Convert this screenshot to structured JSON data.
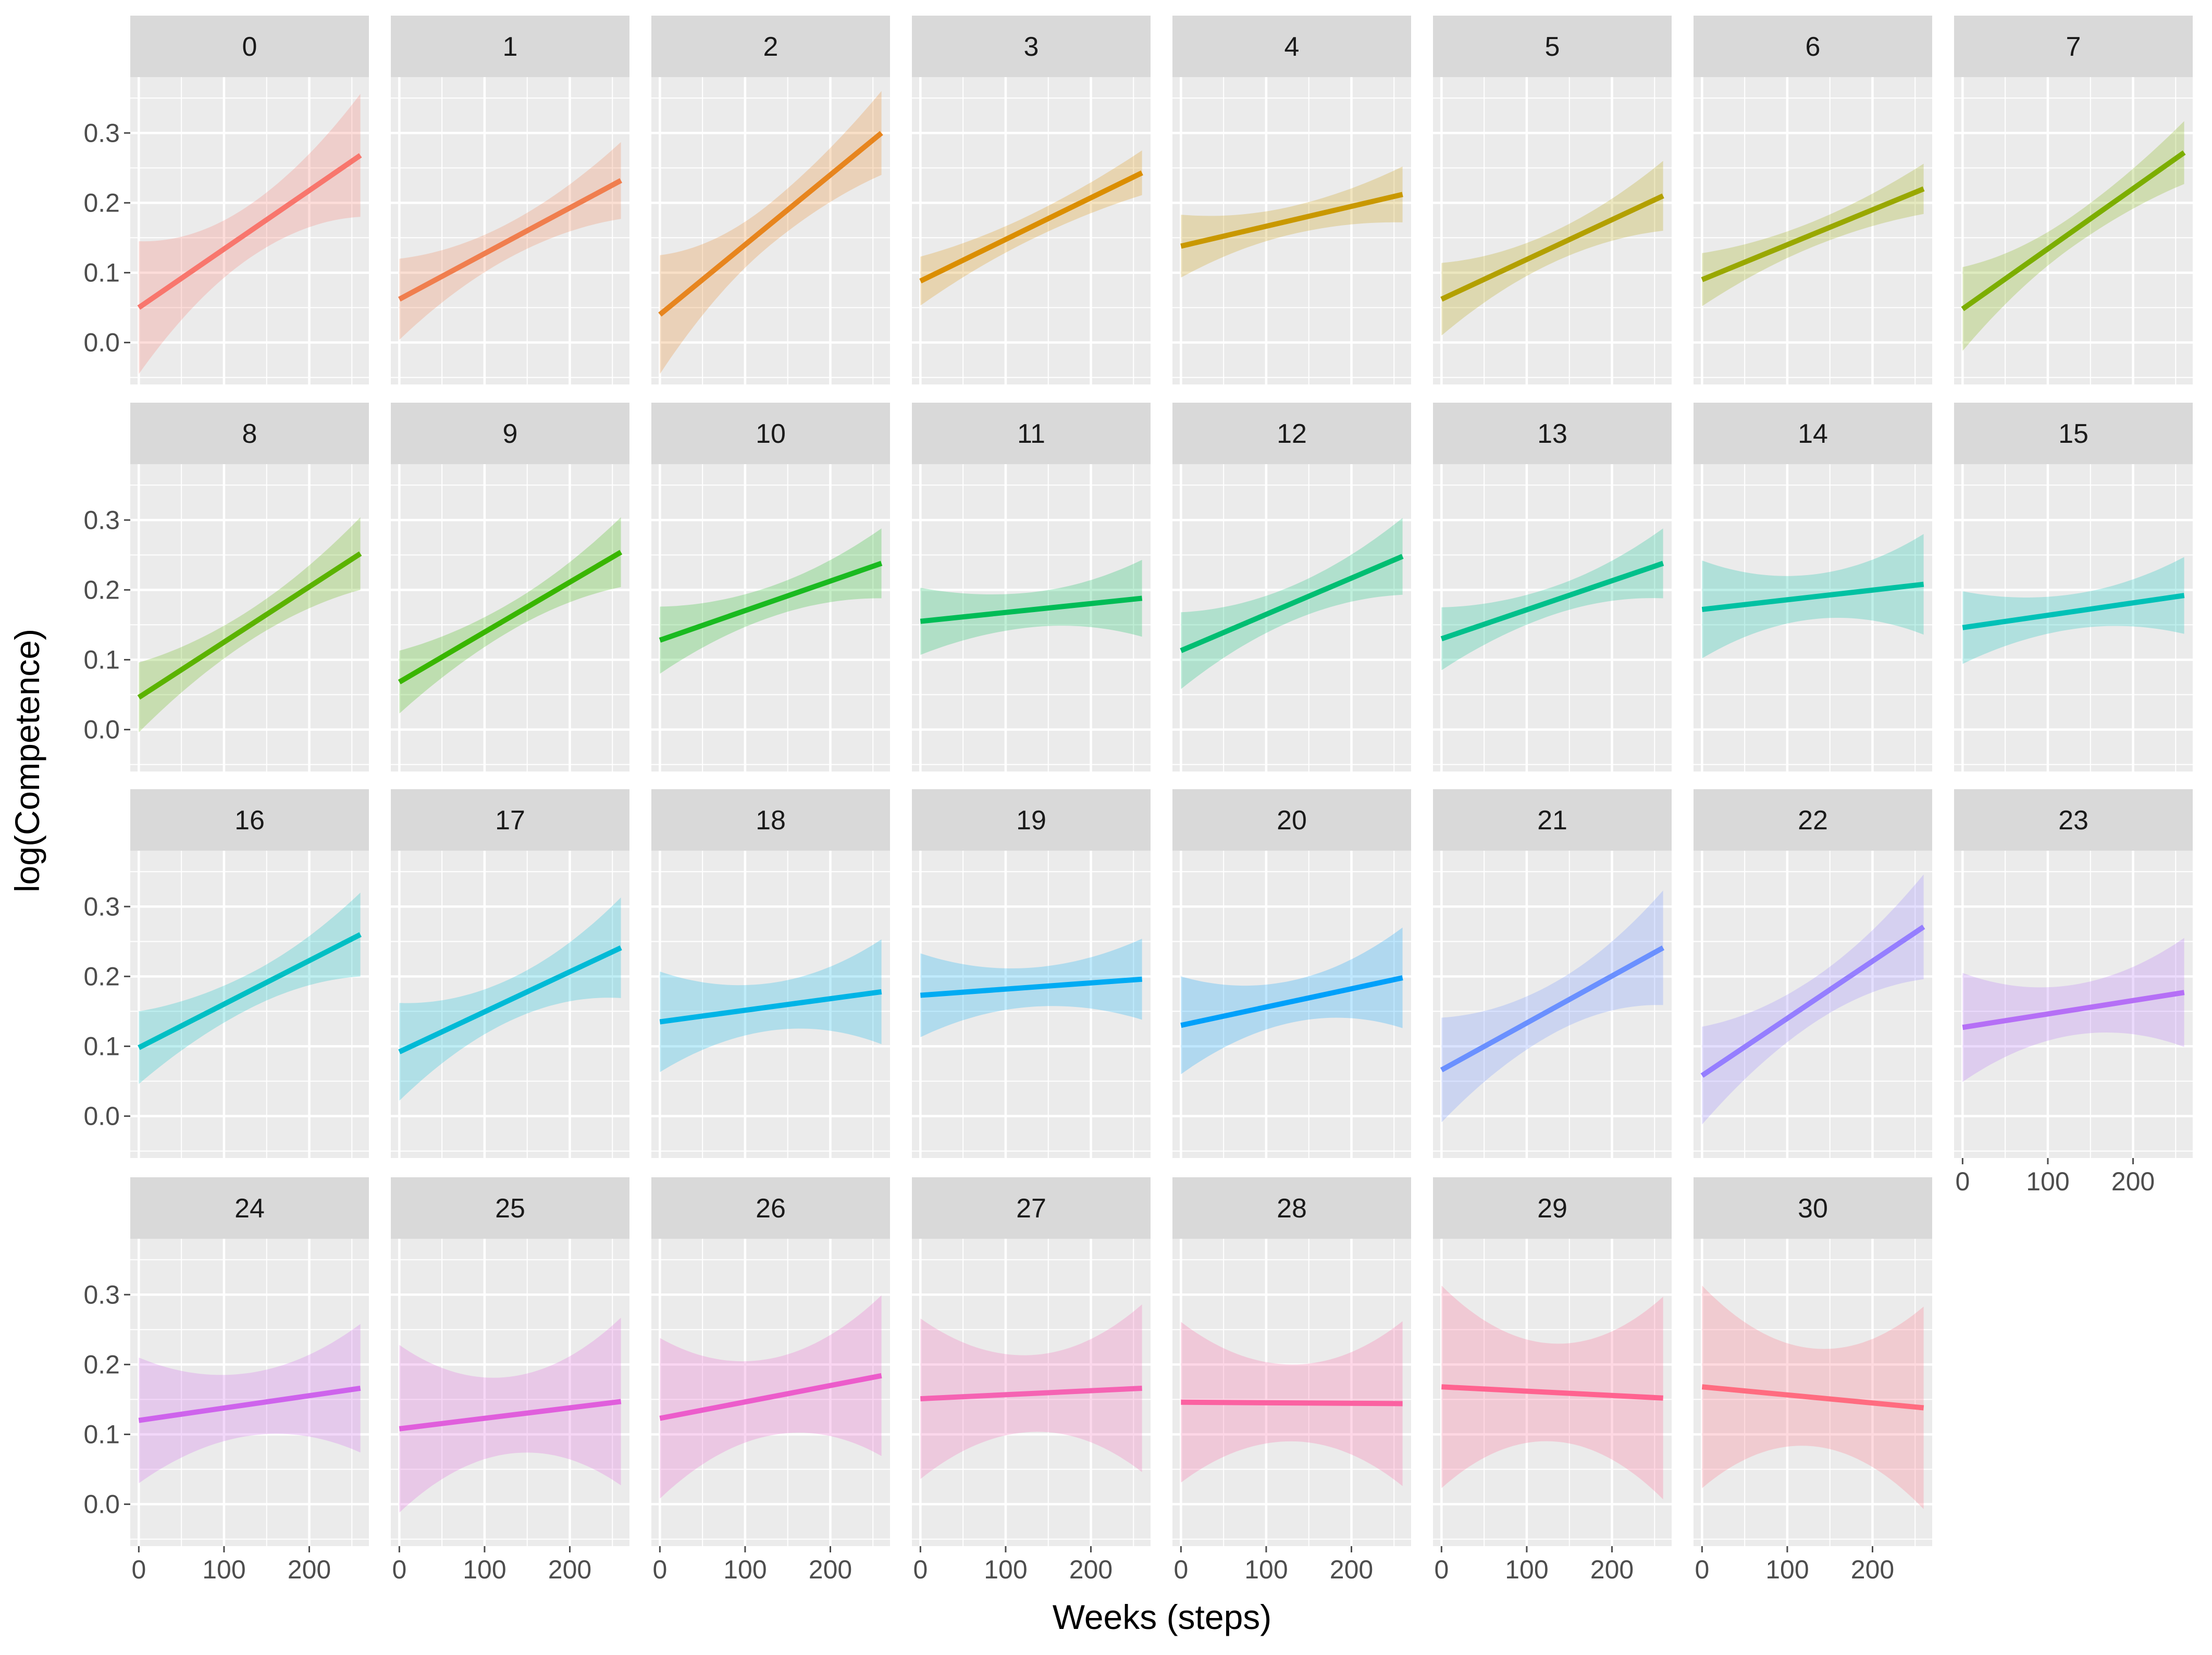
{
  "chart_data": {
    "type": "line",
    "xlabel": "Weeks (steps)",
    "ylabel": "log(Competence)",
    "xlim": [
      -10,
      270
    ],
    "ylim": [
      -0.06,
      0.38
    ],
    "xticks": [
      0,
      100,
      200
    ],
    "yticks": [
      0.0,
      0.1,
      0.2,
      0.3
    ],
    "ytick_labels": [
      "0.0",
      "0.1",
      "0.2",
      "0.3"
    ],
    "grid": true,
    "ribbon": "confidence band",
    "x_range": [
      0,
      260
    ],
    "facets": [
      {
        "label": "0",
        "color": "#F8766D",
        "y_start": 0.05,
        "y_end": 0.268,
        "band_start": 0.095,
        "band_mid": 0.038,
        "band_end": 0.088
      },
      {
        "label": "1",
        "color": "#F07E4E",
        "y_start": 0.062,
        "y_end": 0.232,
        "band_start": 0.058,
        "band_mid": 0.025,
        "band_end": 0.055
      },
      {
        "label": "2",
        "color": "#E7851E",
        "y_start": 0.04,
        "y_end": 0.3,
        "band_start": 0.085,
        "band_mid": 0.03,
        "band_end": 0.06
      },
      {
        "label": "3",
        "color": "#DB8E00",
        "y_start": 0.088,
        "y_end": 0.243,
        "band_start": 0.035,
        "band_mid": 0.018,
        "band_end": 0.032
      },
      {
        "label": "4",
        "color": "#C99800",
        "y_start": 0.138,
        "y_end": 0.212,
        "band_start": 0.045,
        "band_mid": 0.02,
        "band_end": 0.04
      },
      {
        "label": "5",
        "color": "#B3A000",
        "y_start": 0.062,
        "y_end": 0.21,
        "band_start": 0.052,
        "band_mid": 0.022,
        "band_end": 0.05
      },
      {
        "label": "6",
        "color": "#99A800",
        "y_start": 0.09,
        "y_end": 0.22,
        "band_start": 0.038,
        "band_mid": 0.018,
        "band_end": 0.036
      },
      {
        "label": "7",
        "color": "#7CAE00",
        "y_start": 0.048,
        "y_end": 0.272,
        "band_start": 0.06,
        "band_mid": 0.022,
        "band_end": 0.045
      },
      {
        "label": "8",
        "color": "#5BB300",
        "y_start": 0.046,
        "y_end": 0.252,
        "band_start": 0.05,
        "band_mid": 0.022,
        "band_end": 0.052
      },
      {
        "label": "9",
        "color": "#39B600",
        "y_start": 0.068,
        "y_end": 0.254,
        "band_start": 0.045,
        "band_mid": 0.02,
        "band_end": 0.05
      },
      {
        "label": "10",
        "color": "#1ABA20",
        "y_start": 0.128,
        "y_end": 0.238,
        "band_start": 0.048,
        "band_mid": 0.022,
        "band_end": 0.05
      },
      {
        "label": "11",
        "color": "#00BC56",
        "y_start": 0.155,
        "y_end": 0.188,
        "band_start": 0.048,
        "band_mid": 0.025,
        "band_end": 0.055
      },
      {
        "label": "12",
        "color": "#00BE72",
        "y_start": 0.113,
        "y_end": 0.248,
        "band_start": 0.055,
        "band_mid": 0.025,
        "band_end": 0.055
      },
      {
        "label": "13",
        "color": "#00C08B",
        "y_start": 0.13,
        "y_end": 0.238,
        "band_start": 0.045,
        "band_mid": 0.02,
        "band_end": 0.05
      },
      {
        "label": "14",
        "color": "#00C1A2",
        "y_start": 0.172,
        "y_end": 0.208,
        "band_start": 0.07,
        "band_mid": 0.032,
        "band_end": 0.072
      },
      {
        "label": "15",
        "color": "#00C1B7",
        "y_start": 0.146,
        "y_end": 0.192,
        "band_start": 0.052,
        "band_mid": 0.025,
        "band_end": 0.055
      },
      {
        "label": "16",
        "color": "#00BFC4",
        "y_start": 0.098,
        "y_end": 0.26,
        "band_start": 0.052,
        "band_mid": 0.025,
        "band_end": 0.06
      },
      {
        "label": "17",
        "color": "#00BAD6",
        "y_start": 0.092,
        "y_end": 0.241,
        "band_start": 0.07,
        "band_mid": 0.03,
        "band_end": 0.072
      },
      {
        "label": "18",
        "color": "#00B4E6",
        "y_start": 0.135,
        "y_end": 0.178,
        "band_start": 0.072,
        "band_mid": 0.034,
        "band_end": 0.075
      },
      {
        "label": "19",
        "color": "#00ABF3",
        "y_start": 0.173,
        "y_end": 0.196,
        "band_start": 0.06,
        "band_mid": 0.028,
        "band_end": 0.058
      },
      {
        "label": "20",
        "color": "#00A0FA",
        "y_start": 0.13,
        "y_end": 0.198,
        "band_start": 0.07,
        "band_mid": 0.03,
        "band_end": 0.072
      },
      {
        "label": "21",
        "color": "#6A90FF",
        "y_start": 0.066,
        "y_end": 0.241,
        "band_start": 0.075,
        "band_mid": 0.036,
        "band_end": 0.082
      },
      {
        "label": "22",
        "color": "#957EFF",
        "y_start": 0.058,
        "y_end": 0.271,
        "band_start": 0.07,
        "band_mid": 0.032,
        "band_end": 0.075
      },
      {
        "label": "23",
        "color": "#B56FF6",
        "y_start": 0.127,
        "y_end": 0.177,
        "band_start": 0.078,
        "band_mid": 0.036,
        "band_end": 0.078
      },
      {
        "label": "24",
        "color": "#CE63EC",
        "y_start": 0.12,
        "y_end": 0.166,
        "band_start": 0.09,
        "band_mid": 0.045,
        "band_end": 0.092
      },
      {
        "label": "25",
        "color": "#E05EDC",
        "y_start": 0.108,
        "y_end": 0.147,
        "band_start": 0.12,
        "band_mid": 0.055,
        "band_end": 0.12
      },
      {
        "label": "26",
        "color": "#EC5CCB",
        "y_start": 0.123,
        "y_end": 0.184,
        "band_start": 0.115,
        "band_mid": 0.055,
        "band_end": 0.115
      },
      {
        "label": "27",
        "color": "#F563B3",
        "y_start": 0.151,
        "y_end": 0.166,
        "band_start": 0.115,
        "band_mid": 0.055,
        "band_end": 0.12
      },
      {
        "label": "28",
        "color": "#FB61A1",
        "y_start": 0.146,
        "y_end": 0.144,
        "band_start": 0.115,
        "band_mid": 0.055,
        "band_end": 0.118
      },
      {
        "label": "29",
        "color": "#FF6390",
        "y_start": 0.168,
        "y_end": 0.152,
        "band_start": 0.145,
        "band_mid": 0.07,
        "band_end": 0.145
      },
      {
        "label": "30",
        "color": "#FF6C80",
        "y_start": 0.168,
        "y_end": 0.138,
        "band_start": 0.145,
        "band_mid": 0.07,
        "band_end": 0.145
      }
    ]
  }
}
